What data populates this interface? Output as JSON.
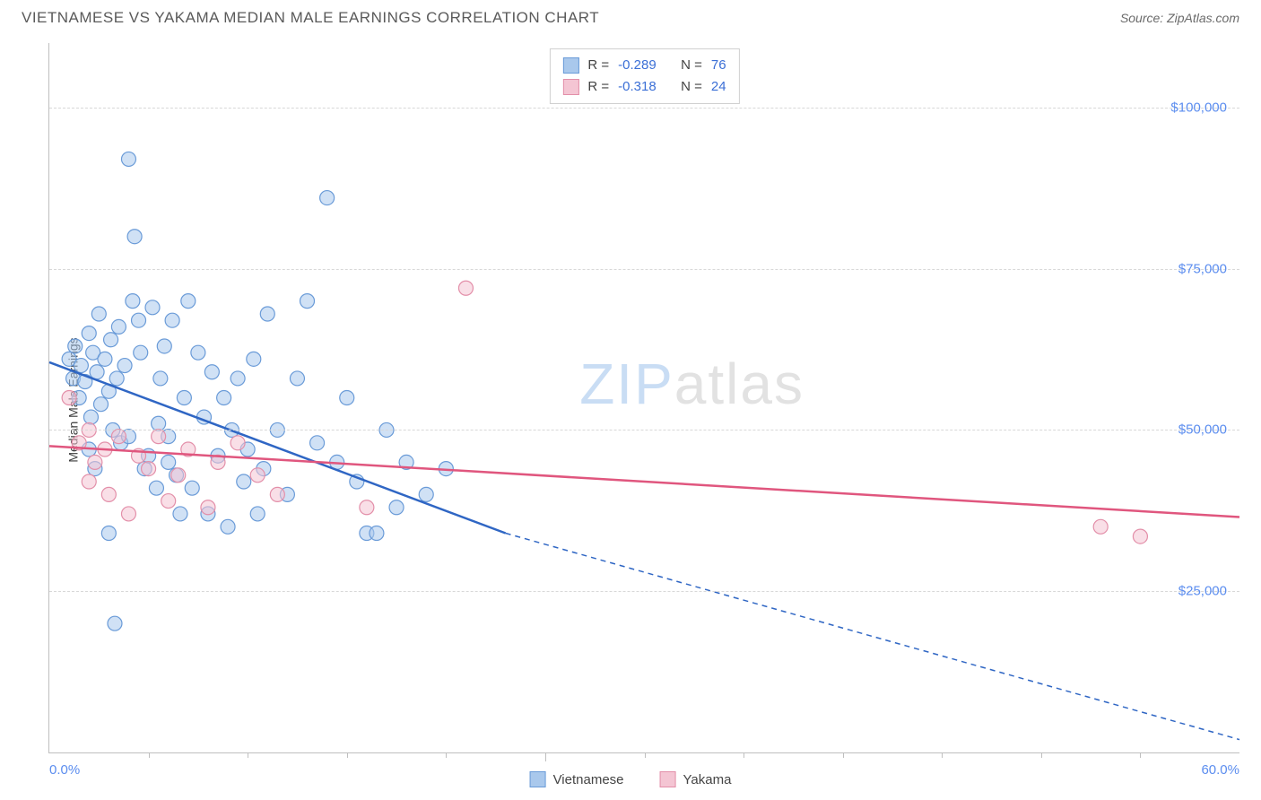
{
  "header": {
    "title": "VIETNAMESE VS YAKAMA MEDIAN MALE EARNINGS CORRELATION CHART",
    "source": "Source: ZipAtlas.com"
  },
  "watermark": {
    "zip": "ZIP",
    "atlas": "atlas"
  },
  "chart": {
    "type": "scatter",
    "background_color": "#ffffff",
    "grid_color": "#d8d8d8",
    "axis_color": "#bfbfbf",
    "tick_label_color": "#5b8def",
    "ylabel": "Median Male Earnings",
    "ylabel_fontsize": 14,
    "xlim": [
      0,
      60
    ],
    "ylim": [
      0,
      110000
    ],
    "y_ticks": [
      {
        "value": 25000,
        "label": "$25,000"
      },
      {
        "value": 50000,
        "label": "$50,000"
      },
      {
        "value": 75000,
        "label": "$75,000"
      },
      {
        "value": 100000,
        "label": "$100,000"
      }
    ],
    "x_ticks_major": [
      0,
      60
    ],
    "x_ticks_minor": [
      5,
      10,
      15,
      20,
      25,
      30,
      35,
      40,
      45,
      50,
      55
    ],
    "x_tick_labels": [
      {
        "value": 0,
        "label": "0.0%"
      },
      {
        "value": 60,
        "label": "60.0%"
      }
    ],
    "marker_radius": 8,
    "marker_opacity": 0.55,
    "series": [
      {
        "name": "Vietnamese",
        "fill_color": "#a9c8ec",
        "stroke_color": "#6a9bd8",
        "line_color": "#2f66c4",
        "line_width": 2.5,
        "R": "-0.289",
        "N": "76",
        "regression": {
          "x1": 0,
          "y1": 60500,
          "x2": 23,
          "y2": 34000,
          "x_dash_start": 23,
          "x2d": 60,
          "y2d": 2000
        },
        "points": [
          [
            1.0,
            61000
          ],
          [
            1.2,
            58000
          ],
          [
            1.3,
            63000
          ],
          [
            1.5,
            55000
          ],
          [
            1.6,
            60000
          ],
          [
            1.8,
            57500
          ],
          [
            2.0,
            65000
          ],
          [
            2.1,
            52000
          ],
          [
            2.2,
            62000
          ],
          [
            2.4,
            59000
          ],
          [
            2.5,
            68000
          ],
          [
            2.6,
            54000
          ],
          [
            2.8,
            61000
          ],
          [
            3.0,
            56000
          ],
          [
            3.1,
            64000
          ],
          [
            3.2,
            50000
          ],
          [
            3.4,
            58000
          ],
          [
            3.5,
            66000
          ],
          [
            3.6,
            48000
          ],
          [
            3.8,
            60000
          ],
          [
            4.0,
            92000
          ],
          [
            4.2,
            70000
          ],
          [
            4.3,
            80000
          ],
          [
            4.5,
            67000
          ],
          [
            4.6,
            62000
          ],
          [
            4.8,
            44000
          ],
          [
            5.0,
            46000
          ],
          [
            5.2,
            69000
          ],
          [
            5.4,
            41000
          ],
          [
            5.6,
            58000
          ],
          [
            5.8,
            63000
          ],
          [
            6.0,
            45000
          ],
          [
            6.2,
            67000
          ],
          [
            6.4,
            43000
          ],
          [
            6.6,
            37000
          ],
          [
            6.8,
            55000
          ],
          [
            7.0,
            70000
          ],
          [
            7.2,
            41000
          ],
          [
            7.5,
            62000
          ],
          [
            7.8,
            52000
          ],
          [
            8.0,
            37000
          ],
          [
            8.2,
            59000
          ],
          [
            8.5,
            46000
          ],
          [
            8.8,
            55000
          ],
          [
            9.0,
            35000
          ],
          [
            9.2,
            50000
          ],
          [
            9.5,
            58000
          ],
          [
            9.8,
            42000
          ],
          [
            10.0,
            47000
          ],
          [
            10.3,
            61000
          ],
          [
            10.5,
            37000
          ],
          [
            10.8,
            44000
          ],
          [
            11.0,
            68000
          ],
          [
            11.5,
            50000
          ],
          [
            12.0,
            40000
          ],
          [
            12.5,
            58000
          ],
          [
            13.0,
            70000
          ],
          [
            13.5,
            48000
          ],
          [
            14.0,
            86000
          ],
          [
            14.5,
            45000
          ],
          [
            15.0,
            55000
          ],
          [
            15.5,
            42000
          ],
          [
            16.0,
            34000
          ],
          [
            16.5,
            34000
          ],
          [
            17.0,
            50000
          ],
          [
            17.5,
            38000
          ],
          [
            18.0,
            45000
          ],
          [
            19.0,
            40000
          ],
          [
            20.0,
            44000
          ],
          [
            3.3,
            20000
          ],
          [
            3.0,
            34000
          ],
          [
            4.0,
            49000
          ],
          [
            5.5,
            51000
          ],
          [
            6.0,
            49000
          ],
          [
            2.0,
            47000
          ],
          [
            2.3,
            44000
          ]
        ]
      },
      {
        "name": "Yakama",
        "fill_color": "#f4c5d3",
        "stroke_color": "#e38fa9",
        "line_color": "#e0567e",
        "line_width": 2.5,
        "R": "-0.318",
        "N": "24",
        "regression": {
          "x1": 0,
          "y1": 47500,
          "x2": 60,
          "y2": 36500
        },
        "points": [
          [
            1.0,
            55000
          ],
          [
            1.5,
            48000
          ],
          [
            2.0,
            42000
          ],
          [
            2.3,
            45000
          ],
          [
            2.8,
            47000
          ],
          [
            3.0,
            40000
          ],
          [
            3.5,
            49000
          ],
          [
            4.0,
            37000
          ],
          [
            4.5,
            46000
          ],
          [
            5.0,
            44000
          ],
          [
            5.5,
            49000
          ],
          [
            6.0,
            39000
          ],
          [
            6.5,
            43000
          ],
          [
            7.0,
            47000
          ],
          [
            8.0,
            38000
          ],
          [
            8.5,
            45000
          ],
          [
            9.5,
            48000
          ],
          [
            10.5,
            43000
          ],
          [
            11.5,
            40000
          ],
          [
            16.0,
            38000
          ],
          [
            21.0,
            72000
          ],
          [
            53.0,
            35000
          ],
          [
            55.0,
            33500
          ],
          [
            2.0,
            50000
          ]
        ]
      }
    ],
    "stats_box": {
      "r_label": "R =",
      "n_label": "N ="
    },
    "legend_labels": {
      "vietnamese": "Vietnamese",
      "yakama": "Yakama"
    }
  }
}
